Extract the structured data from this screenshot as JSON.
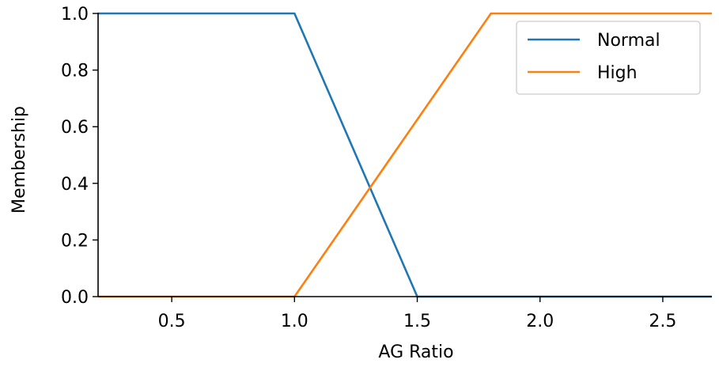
{
  "chart_data": {
    "type": "line",
    "title": "",
    "xlabel": "AG Ratio",
    "ylabel": "Membership",
    "xlim": [
      0.2,
      2.7
    ],
    "ylim": [
      0.0,
      1.0
    ],
    "xticks": [
      0.5,
      1.0,
      1.5,
      2.0,
      2.5
    ],
    "xtick_labels": [
      "0.5",
      "1.0",
      "1.5",
      "2.0",
      "2.5"
    ],
    "yticks": [
      0.0,
      0.2,
      0.4,
      0.6,
      0.8,
      1.0
    ],
    "ytick_labels": [
      "0.0",
      "0.2",
      "0.4",
      "0.6",
      "0.8",
      "1.0"
    ],
    "grid": false,
    "legend_position": "top-right",
    "series": [
      {
        "name": "Normal",
        "color": "#1f77b4",
        "x": [
          0.2,
          1.0,
          1.5,
          2.7
        ],
        "y": [
          1.0,
          1.0,
          0.0,
          0.0
        ]
      },
      {
        "name": "High",
        "color": "#ff7f0e",
        "x": [
          0.2,
          1.0,
          1.8,
          2.7
        ],
        "y": [
          0.0,
          0.0,
          1.0,
          1.0
        ]
      }
    ]
  }
}
